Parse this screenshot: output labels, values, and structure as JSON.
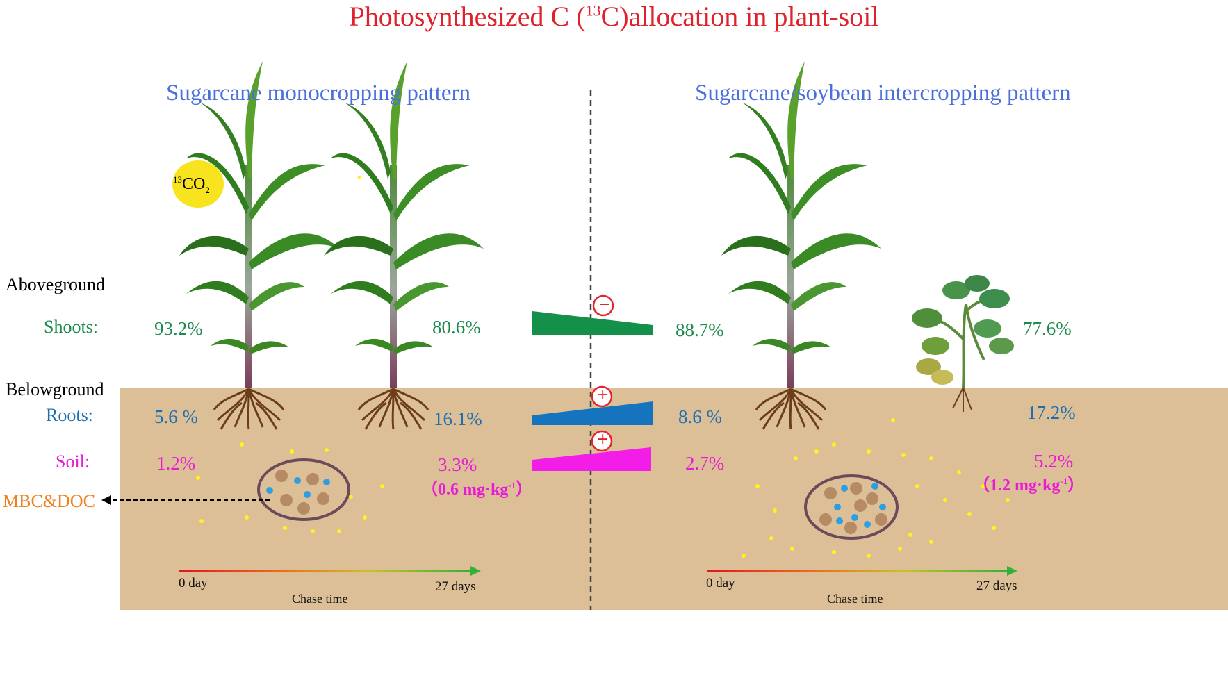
{
  "title": {
    "pre": "Photosynthesized C (",
    "sup": "13",
    "post": "C)allocation in plant-soil"
  },
  "left_pattern": "Sugarcane monocropping pattern",
  "right_pattern": "Sugarcane/soybean intercropping pattern",
  "co2_label": {
    "sup": "13",
    "base": "CO",
    "sub": "2"
  },
  "row_labels": {
    "aboveground": "Aboveground",
    "shoots": "Shoots:",
    "belowground": "Belowground",
    "roots": "Roots:",
    "soil": "Soil:",
    "mbc": "MBC&DOC"
  },
  "mono": {
    "shoots_day0": "93.2%",
    "shoots_day27": "80.6%",
    "roots_day0": "5.6 %",
    "roots_day27": "16.1%",
    "soil_day0": "1.2%",
    "soil_day27": "3.3%",
    "mbc_value": "0.6 mg·kg",
    "mbc_exp": "-1"
  },
  "inter": {
    "shoots_day0": "88.7%",
    "shoots_day27": "77.6%",
    "roots_day0": "8.6 %",
    "roots_day27": "17.2%",
    "soil_day0": "2.7%",
    "soil_day27": "5.2%",
    "mbc_value": "1.2 mg·kg",
    "mbc_exp": "-1"
  },
  "timeline": {
    "start": "0 day",
    "end": "27 days",
    "caption": "Chase time"
  },
  "signs": {
    "shoots": "−",
    "roots": "+",
    "soil": "+"
  },
  "colors": {
    "title": "#e0202a",
    "pattern": "#4a6fdc",
    "shoots": "#1e8a4c",
    "roots": "#1f6fb0",
    "soil_text": "#e91ad6",
    "soil_bg": "#dcbf96",
    "mbc": "#ee7f1a",
    "shoots_wedge": "#14904a",
    "roots_wedge": "#1673bd",
    "soil_wedge": "#f21ee8",
    "sun": "#f7e41e"
  }
}
